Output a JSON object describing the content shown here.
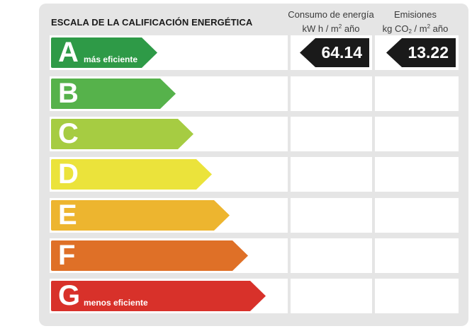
{
  "title": "ESCALA DE LA CALIFICACIÓN ENERGÉTICA",
  "columns": {
    "consumo": {
      "line1": "Consumo de energía",
      "unit_a": "kW h  / m",
      "unit_sup": "2",
      "unit_b": " año"
    },
    "emisiones": {
      "line1": "Emisiones",
      "unit_a": "kg CO",
      "unit_sub": "2",
      "unit_b": " / m",
      "unit_sup": "2",
      "unit_c": " año"
    }
  },
  "grades": [
    {
      "letter": "A",
      "label": "más eficiente",
      "color": "#2e9a47"
    },
    {
      "letter": "B",
      "label": "",
      "color": "#56b24b"
    },
    {
      "letter": "C",
      "label": "",
      "color": "#a6cc42"
    },
    {
      "letter": "D",
      "label": "",
      "color": "#ebe33b"
    },
    {
      "letter": "E",
      "label": "",
      "color": "#edb52f"
    },
    {
      "letter": "F",
      "label": "",
      "color": "#df7027"
    },
    {
      "letter": "G",
      "label": "menos eficiente",
      "color": "#d8312a"
    }
  ],
  "rating": {
    "grade": "A",
    "consumo": "64.14",
    "emisiones": "13.22"
  }
}
